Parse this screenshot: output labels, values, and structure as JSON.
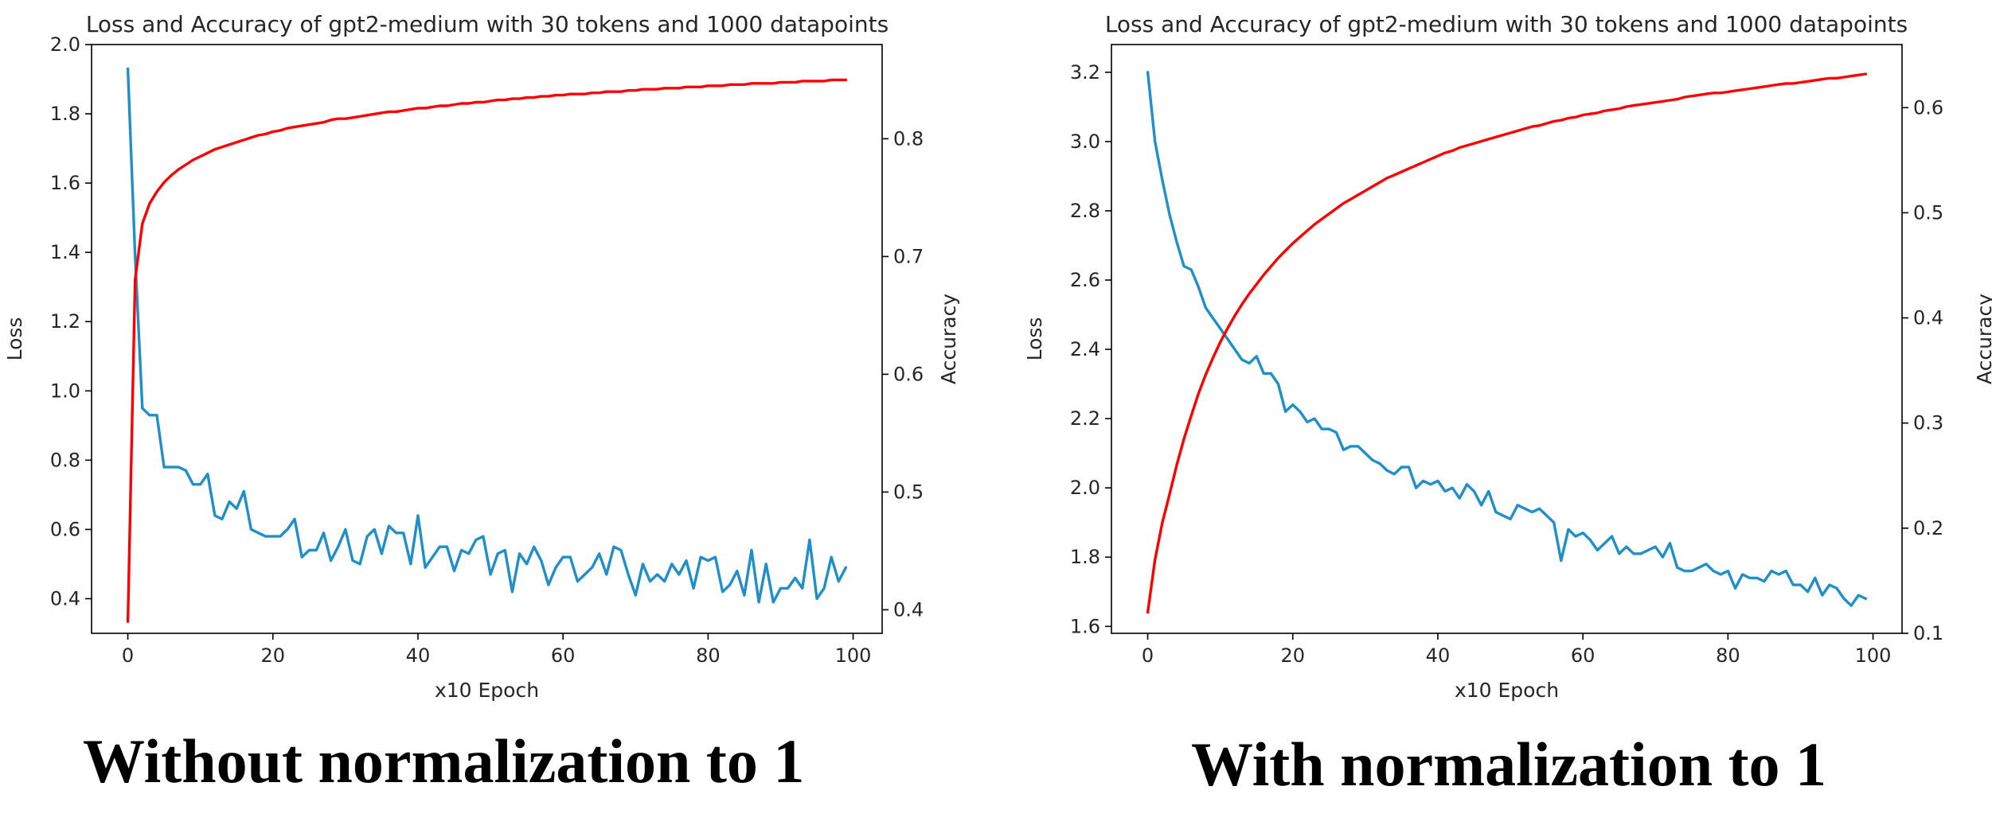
{
  "captions": {
    "left": "Without normalization to 1",
    "right": "With normalization to 1"
  },
  "colors": {
    "loss": "#1f8fc9",
    "accuracy": "#ff0000",
    "axis": "#000000",
    "text": "#262626"
  },
  "chart_data": [
    {
      "type": "line",
      "title": "Loss and Accuracy of gpt2-medium with 30 tokens and 1000 datapoints",
      "xlabel": "x10 Epoch",
      "ylabel_left": "Loss",
      "ylabel_right": "Accuracy",
      "xlim": [
        -5,
        104
      ],
      "ylim_left": [
        0.3,
        2.0
      ],
      "ylim_right": [
        0.38,
        0.88
      ],
      "xticks": [
        "0",
        "20",
        "40",
        "60",
        "80",
        "100"
      ],
      "xtick_values": [
        0,
        20,
        40,
        60,
        80,
        100
      ],
      "yticks_left": [
        "0.4",
        "0.6",
        "0.8",
        "1.0",
        "1.2",
        "1.4",
        "1.6",
        "1.8",
        "2.0"
      ],
      "yticks_left_values": [
        0.4,
        0.6,
        0.8,
        1.0,
        1.2,
        1.4,
        1.6,
        1.8,
        2.0
      ],
      "yticks_right": [
        "0.4",
        "0.5",
        "0.6",
        "0.7",
        "0.8"
      ],
      "yticks_right_values": [
        0.4,
        0.5,
        0.6,
        0.7,
        0.8
      ],
      "series": [
        {
          "axis": "left",
          "color": "#1f8fc9",
          "x": [
            0,
            1,
            2,
            3,
            4,
            5,
            6,
            7,
            8,
            9,
            10,
            11,
            12,
            13,
            14,
            15,
            16,
            17,
            18,
            19,
            20,
            21,
            22,
            23,
            24,
            25,
            26,
            27,
            28,
            29,
            30,
            31,
            32,
            33,
            34,
            35,
            36,
            37,
            38,
            39,
            40,
            41,
            42,
            43,
            44,
            45,
            46,
            47,
            48,
            49,
            50,
            51,
            52,
            53,
            54,
            55,
            56,
            57,
            58,
            59,
            60,
            61,
            62,
            63,
            64,
            65,
            66,
            67,
            68,
            69,
            70,
            71,
            72,
            73,
            74,
            75,
            76,
            77,
            78,
            79,
            80,
            81,
            82,
            83,
            84,
            85,
            86,
            87,
            88,
            89,
            90,
            91,
            92,
            93,
            94,
            95,
            96,
            97,
            98,
            99
          ],
          "y": [
            1.93,
            1.39,
            0.95,
            0.93,
            0.93,
            0.78,
            0.78,
            0.78,
            0.77,
            0.73,
            0.73,
            0.76,
            0.64,
            0.63,
            0.68,
            0.66,
            0.71,
            0.6,
            0.59,
            0.58,
            0.58,
            0.58,
            0.6,
            0.63,
            0.52,
            0.54,
            0.54,
            0.59,
            0.51,
            0.55,
            0.6,
            0.51,
            0.5,
            0.58,
            0.6,
            0.53,
            0.61,
            0.59,
            0.59,
            0.5,
            0.64,
            0.49,
            0.52,
            0.55,
            0.55,
            0.48,
            0.54,
            0.53,
            0.57,
            0.58,
            0.47,
            0.53,
            0.54,
            0.42,
            0.53,
            0.5,
            0.55,
            0.51,
            0.44,
            0.49,
            0.52,
            0.52,
            0.45,
            0.47,
            0.49,
            0.53,
            0.47,
            0.55,
            0.54,
            0.47,
            0.41,
            0.5,
            0.45,
            0.47,
            0.45,
            0.5,
            0.47,
            0.51,
            0.43,
            0.52,
            0.51,
            0.52,
            0.42,
            0.44,
            0.48,
            0.41,
            0.54,
            0.39,
            0.5,
            0.39,
            0.43,
            0.43,
            0.46,
            0.43,
            0.57,
            0.4,
            0.43,
            0.52,
            0.45,
            0.49
          ]
        },
        {
          "axis": "right",
          "color": "#ff0000",
          "x": [
            0,
            1,
            2,
            3,
            4,
            5,
            6,
            7,
            8,
            9,
            10,
            11,
            12,
            13,
            14,
            15,
            16,
            17,
            18,
            19,
            20,
            21,
            22,
            23,
            24,
            25,
            26,
            27,
            28,
            29,
            30,
            31,
            32,
            33,
            34,
            35,
            36,
            37,
            38,
            39,
            40,
            41,
            42,
            43,
            44,
            45,
            46,
            47,
            48,
            49,
            50,
            51,
            52,
            53,
            54,
            55,
            56,
            57,
            58,
            59,
            60,
            61,
            62,
            63,
            64,
            65,
            66,
            67,
            68,
            69,
            70,
            71,
            72,
            73,
            74,
            75,
            76,
            77,
            78,
            79,
            80,
            81,
            82,
            83,
            84,
            85,
            86,
            87,
            88,
            89,
            90,
            91,
            92,
            93,
            94,
            95,
            96,
            97,
            98,
            99
          ],
          "y": [
            0.39,
            0.68,
            0.728,
            0.745,
            0.755,
            0.763,
            0.769,
            0.774,
            0.778,
            0.782,
            0.785,
            0.788,
            0.791,
            0.793,
            0.795,
            0.797,
            0.799,
            0.801,
            0.803,
            0.804,
            0.806,
            0.807,
            0.809,
            0.81,
            0.811,
            0.812,
            0.813,
            0.814,
            0.816,
            0.817,
            0.817,
            0.818,
            0.819,
            0.82,
            0.821,
            0.822,
            0.823,
            0.823,
            0.824,
            0.825,
            0.826,
            0.826,
            0.827,
            0.828,
            0.828,
            0.829,
            0.83,
            0.83,
            0.831,
            0.831,
            0.832,
            0.833,
            0.833,
            0.834,
            0.834,
            0.835,
            0.835,
            0.836,
            0.836,
            0.837,
            0.837,
            0.838,
            0.838,
            0.838,
            0.839,
            0.839,
            0.84,
            0.84,
            0.84,
            0.841,
            0.841,
            0.842,
            0.842,
            0.842,
            0.843,
            0.843,
            0.843,
            0.844,
            0.844,
            0.844,
            0.845,
            0.845,
            0.845,
            0.846,
            0.846,
            0.846,
            0.847,
            0.847,
            0.847,
            0.847,
            0.848,
            0.848,
            0.848,
            0.849,
            0.849,
            0.849,
            0.849,
            0.85,
            0.85,
            0.85
          ]
        }
      ]
    },
    {
      "type": "line",
      "title": "Loss and Accuracy of gpt2-medium with 30 tokens and 1000 datapoints",
      "xlabel": "x10 Epoch",
      "ylabel_left": "Loss",
      "ylabel_right": "Accuracy",
      "xlim": [
        -5,
        104
      ],
      "ylim_left": [
        1.58,
        3.28
      ],
      "ylim_right": [
        0.1,
        0.66
      ],
      "xticks": [
        "0",
        "20",
        "40",
        "60",
        "80",
        "100"
      ],
      "xtick_values": [
        0,
        20,
        40,
        60,
        80,
        100
      ],
      "yticks_left": [
        "1.6",
        "1.8",
        "2.0",
        "2.2",
        "2.4",
        "2.6",
        "2.8",
        "3.0",
        "3.2"
      ],
      "yticks_left_values": [
        1.6,
        1.8,
        2.0,
        2.2,
        2.4,
        2.6,
        2.8,
        3.0,
        3.2
      ],
      "yticks_right": [
        "0.1",
        "0.2",
        "0.3",
        "0.4",
        "0.5",
        "0.6"
      ],
      "yticks_right_values": [
        0.1,
        0.2,
        0.3,
        0.4,
        0.5,
        0.6
      ],
      "series": [
        {
          "axis": "left",
          "color": "#1f8fc9",
          "x": [
            0,
            1,
            2,
            3,
            4,
            5,
            6,
            7,
            8,
            9,
            10,
            11,
            12,
            13,
            14,
            15,
            16,
            17,
            18,
            19,
            20,
            21,
            22,
            23,
            24,
            25,
            26,
            27,
            28,
            29,
            30,
            31,
            32,
            33,
            34,
            35,
            36,
            37,
            38,
            39,
            40,
            41,
            42,
            43,
            44,
            45,
            46,
            47,
            48,
            49,
            50,
            51,
            52,
            53,
            54,
            55,
            56,
            57,
            58,
            59,
            60,
            61,
            62,
            63,
            64,
            65,
            66,
            67,
            68,
            69,
            70,
            71,
            72,
            73,
            74,
            75,
            76,
            77,
            78,
            79,
            80,
            81,
            82,
            83,
            84,
            85,
            86,
            87,
            88,
            89,
            90,
            91,
            92,
            93,
            94,
            95,
            96,
            97,
            98,
            99
          ],
          "y": [
            3.2,
            3.0,
            2.89,
            2.79,
            2.71,
            2.64,
            2.63,
            2.58,
            2.52,
            2.49,
            2.46,
            2.43,
            2.4,
            2.37,
            2.36,
            2.38,
            2.33,
            2.33,
            2.3,
            2.22,
            2.24,
            2.22,
            2.19,
            2.2,
            2.17,
            2.17,
            2.16,
            2.11,
            2.12,
            2.12,
            2.1,
            2.08,
            2.07,
            2.05,
            2.04,
            2.06,
            2.06,
            2.0,
            2.02,
            2.01,
            2.02,
            1.99,
            2.0,
            1.97,
            2.01,
            1.99,
            1.95,
            1.99,
            1.93,
            1.92,
            1.91,
            1.95,
            1.94,
            1.93,
            1.94,
            1.92,
            1.9,
            1.79,
            1.88,
            1.86,
            1.87,
            1.85,
            1.82,
            1.84,
            1.86,
            1.81,
            1.83,
            1.81,
            1.81,
            1.82,
            1.83,
            1.8,
            1.84,
            1.77,
            1.76,
            1.76,
            1.77,
            1.78,
            1.76,
            1.75,
            1.76,
            1.71,
            1.75,
            1.74,
            1.74,
            1.73,
            1.76,
            1.75,
            1.76,
            1.72,
            1.72,
            1.7,
            1.74,
            1.69,
            1.72,
            1.71,
            1.68,
            1.66,
            1.69,
            1.68
          ]
        },
        {
          "axis": "right",
          "color": "#ff0000",
          "x": [
            0,
            1,
            2,
            3,
            4,
            5,
            6,
            7,
            8,
            9,
            10,
            11,
            12,
            13,
            14,
            15,
            16,
            17,
            18,
            19,
            20,
            21,
            22,
            23,
            24,
            25,
            26,
            27,
            28,
            29,
            30,
            31,
            32,
            33,
            34,
            35,
            36,
            37,
            38,
            39,
            40,
            41,
            42,
            43,
            44,
            45,
            46,
            47,
            48,
            49,
            50,
            51,
            52,
            53,
            54,
            55,
            56,
            57,
            58,
            59,
            60,
            61,
            62,
            63,
            64,
            65,
            66,
            67,
            68,
            69,
            70,
            71,
            72,
            73,
            74,
            75,
            76,
            77,
            78,
            79,
            80,
            81,
            82,
            83,
            84,
            85,
            86,
            87,
            88,
            89,
            90,
            91,
            92,
            93,
            94,
            95,
            96,
            97,
            98,
            99
          ],
          "y": [
            0.12,
            0.17,
            0.205,
            0.232,
            0.26,
            0.285,
            0.307,
            0.328,
            0.346,
            0.362,
            0.377,
            0.39,
            0.402,
            0.413,
            0.423,
            0.432,
            0.441,
            0.449,
            0.457,
            0.464,
            0.471,
            0.477,
            0.483,
            0.489,
            0.494,
            0.499,
            0.504,
            0.509,
            0.513,
            0.517,
            0.521,
            0.525,
            0.529,
            0.533,
            0.536,
            0.539,
            0.542,
            0.545,
            0.548,
            0.551,
            0.554,
            0.557,
            0.559,
            0.562,
            0.564,
            0.566,
            0.568,
            0.57,
            0.572,
            0.574,
            0.576,
            0.578,
            0.58,
            0.582,
            0.583,
            0.585,
            0.587,
            0.588,
            0.59,
            0.591,
            0.593,
            0.594,
            0.595,
            0.597,
            0.598,
            0.599,
            0.601,
            0.602,
            0.603,
            0.604,
            0.605,
            0.606,
            0.607,
            0.608,
            0.61,
            0.611,
            0.612,
            0.613,
            0.614,
            0.614,
            0.615,
            0.616,
            0.617,
            0.618,
            0.619,
            0.62,
            0.621,
            0.622,
            0.623,
            0.623,
            0.624,
            0.625,
            0.626,
            0.627,
            0.628,
            0.628,
            0.629,
            0.63,
            0.631,
            0.632
          ]
        }
      ]
    }
  ]
}
